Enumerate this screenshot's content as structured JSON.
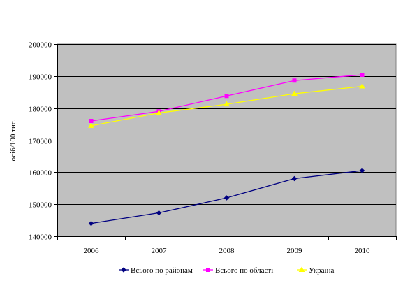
{
  "chart_data": {
    "type": "line",
    "title": "",
    "xlabel": "",
    "ylabel": "осіб/100 тис.",
    "categories": [
      "2006",
      "2007",
      "2008",
      "2009",
      "2010"
    ],
    "ylim": [
      140000,
      200000
    ],
    "yticks": [
      140000,
      150000,
      160000,
      170000,
      180000,
      190000,
      200000
    ],
    "grid": true,
    "plot_background": "#c0c0c0",
    "legend_position": "bottom",
    "series": [
      {
        "name": "Всього по районам",
        "color": "#000080",
        "marker": "diamond",
        "values": [
          144000,
          147300,
          152000,
          158000,
          160500
        ]
      },
      {
        "name": "Всього по області",
        "color": "#ff00ff",
        "marker": "square",
        "values": [
          176000,
          179000,
          183800,
          188600,
          190400
        ]
      },
      {
        "name": "Україна",
        "color": "#ffff00",
        "marker": "triangle",
        "values": [
          174500,
          178500,
          181200,
          184500,
          186800
        ]
      }
    ]
  }
}
